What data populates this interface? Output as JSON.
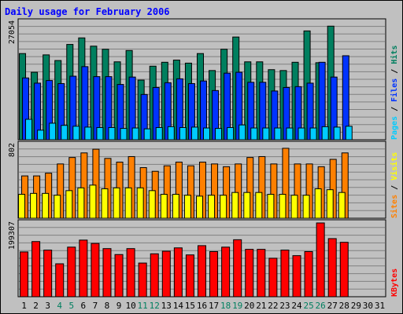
{
  "title": "Daily usage for February 2006",
  "chart_data": [
    {
      "type": "bar",
      "panel": "hits-files-pages",
      "ymax_label": "27054",
      "ylim": [
        0,
        27054
      ],
      "categories": [
        "1",
        "2",
        "3",
        "4",
        "5",
        "6",
        "7",
        "8",
        "9",
        "10",
        "11",
        "12",
        "13",
        "14",
        "15",
        "16",
        "17",
        "18",
        "19",
        "20",
        "21",
        "22",
        "23",
        "24",
        "25",
        "26",
        "27",
        "28",
        "29",
        "30",
        "31"
      ],
      "series": [
        {
          "name": "Hits",
          "color": "#007f5f",
          "values": [
            19800,
            15500,
            19500,
            18200,
            21900,
            23400,
            21500,
            20800,
            17900,
            20500,
            13700,
            16900,
            17800,
            18300,
            17600,
            19800,
            15900,
            20800,
            23600,
            17900,
            17900,
            16100,
            15900,
            17800,
            25000,
            17700,
            26100,
            null,
            null,
            null,
            null
          ]
        },
        {
          "name": "Files",
          "color": "#0033ff",
          "values": [
            14200,
            13000,
            13600,
            12900,
            14600,
            16800,
            14500,
            14500,
            12700,
            14400,
            10400,
            12000,
            13100,
            14000,
            12900,
            13500,
            11300,
            15300,
            15500,
            13200,
            13200,
            11200,
            12000,
            12200,
            13000,
            17800,
            14400,
            19300,
            null,
            null,
            null
          ]
        },
        {
          "name": "Pages",
          "color": "#00ccff",
          "values": [
            4700,
            2200,
            3800,
            3300,
            3100,
            2900,
            2800,
            2800,
            2600,
            2700,
            2500,
            2800,
            3000,
            2800,
            2900,
            2700,
            2600,
            2800,
            3400,
            2700,
            2700,
            2700,
            2700,
            2700,
            2700,
            3000,
            2900,
            3100,
            null,
            null,
            null
          ]
        }
      ],
      "legend": [
        "Pages",
        "Files",
        "Hits"
      ]
    },
    {
      "type": "bar",
      "panel": "sites-visits",
      "ymax_label": "802",
      "ylim": [
        0,
        802
      ],
      "categories": [
        "1",
        "2",
        "3",
        "4",
        "5",
        "6",
        "7",
        "8",
        "9",
        "10",
        "11",
        "12",
        "13",
        "14",
        "15",
        "16",
        "17",
        "18",
        "19",
        "20",
        "21",
        "22",
        "23",
        "24",
        "25",
        "26",
        "27",
        "28",
        "29",
        "30",
        "31"
      ],
      "series": [
        {
          "name": "Sites",
          "color": "#ff8000",
          "values": [
            460,
            460,
            490,
            590,
            660,
            710,
            750,
            650,
            610,
            670,
            550,
            510,
            570,
            610,
            570,
            610,
            590,
            560,
            590,
            660,
            670,
            590,
            760,
            590,
            590,
            560,
            640,
            710,
            null,
            null,
            null
          ]
        },
        {
          "name": "Visits",
          "color": "#ffff00",
          "values": [
            260,
            270,
            270,
            250,
            300,
            330,
            360,
            320,
            330,
            330,
            330,
            300,
            260,
            260,
            250,
            240,
            250,
            250,
            280,
            280,
            280,
            260,
            260,
            250,
            250,
            320,
            310,
            280,
            null,
            null,
            null
          ]
        }
      ],
      "legend": [
        "Sites",
        "Visits"
      ]
    },
    {
      "type": "bar",
      "panel": "kbytes",
      "ymax_label": "199307",
      "ylim": [
        0,
        199307
      ],
      "categories": [
        "1",
        "2",
        "3",
        "4",
        "5",
        "6",
        "7",
        "8",
        "9",
        "10",
        "11",
        "12",
        "13",
        "14",
        "15",
        "16",
        "17",
        "18",
        "19",
        "20",
        "21",
        "22",
        "23",
        "24",
        "25",
        "26",
        "27",
        "28",
        "29",
        "30",
        "31"
      ],
      "series": [
        {
          "name": "KBytes",
          "color": "#ff0000",
          "values": [
            121000,
            149000,
            126000,
            89000,
            134000,
            153000,
            144000,
            130000,
            114000,
            130000,
            91000,
            116000,
            123000,
            132000,
            113000,
            138000,
            122000,
            134000,
            154000,
            128000,
            128000,
            104000,
            126000,
            111000,
            122000,
            199307,
            157000,
            147000,
            null,
            null,
            null
          ]
        }
      ],
      "legend": [
        "KBytes"
      ]
    }
  ],
  "x_labels": [
    {
      "t": "1",
      "c": "#000000"
    },
    {
      "t": "2",
      "c": "#000000"
    },
    {
      "t": "3",
      "c": "#000000"
    },
    {
      "t": "4",
      "c": "#007f5f"
    },
    {
      "t": "5",
      "c": "#007f5f"
    },
    {
      "t": "6",
      "c": "#000000"
    },
    {
      "t": "7",
      "c": "#000000"
    },
    {
      "t": "8",
      "c": "#000000"
    },
    {
      "t": "9",
      "c": "#000000"
    },
    {
      "t": "10",
      "c": "#000000"
    },
    {
      "t": "11",
      "c": "#007f5f"
    },
    {
      "t": "12",
      "c": "#007f5f"
    },
    {
      "t": "13",
      "c": "#000000"
    },
    {
      "t": "14",
      "c": "#000000"
    },
    {
      "t": "15",
      "c": "#000000"
    },
    {
      "t": "16",
      "c": "#000000"
    },
    {
      "t": "17",
      "c": "#000000"
    },
    {
      "t": "18",
      "c": "#007f5f"
    },
    {
      "t": "19",
      "c": "#007f5f"
    },
    {
      "t": "20",
      "c": "#000000"
    },
    {
      "t": "21",
      "c": "#000000"
    },
    {
      "t": "22",
      "c": "#000000"
    },
    {
      "t": "23",
      "c": "#000000"
    },
    {
      "t": "24",
      "c": "#000000"
    },
    {
      "t": "25",
      "c": "#007f5f"
    },
    {
      "t": "26",
      "c": "#007f5f"
    },
    {
      "t": "27",
      "c": "#000000"
    },
    {
      "t": "28",
      "c": "#000000"
    },
    {
      "t": "29",
      "c": "#000000"
    },
    {
      "t": "30",
      "c": "#000000"
    },
    {
      "t": "31",
      "c": "#000000"
    }
  ],
  "legend_colors": {
    "Pages": "#00ccff",
    "Files": "#0033ff",
    "Hits": "#007f5f",
    "Sites": "#ff8000",
    "Visits": "#ffff00",
    "KBytes": "#ff0000",
    "sep": "#000000"
  }
}
